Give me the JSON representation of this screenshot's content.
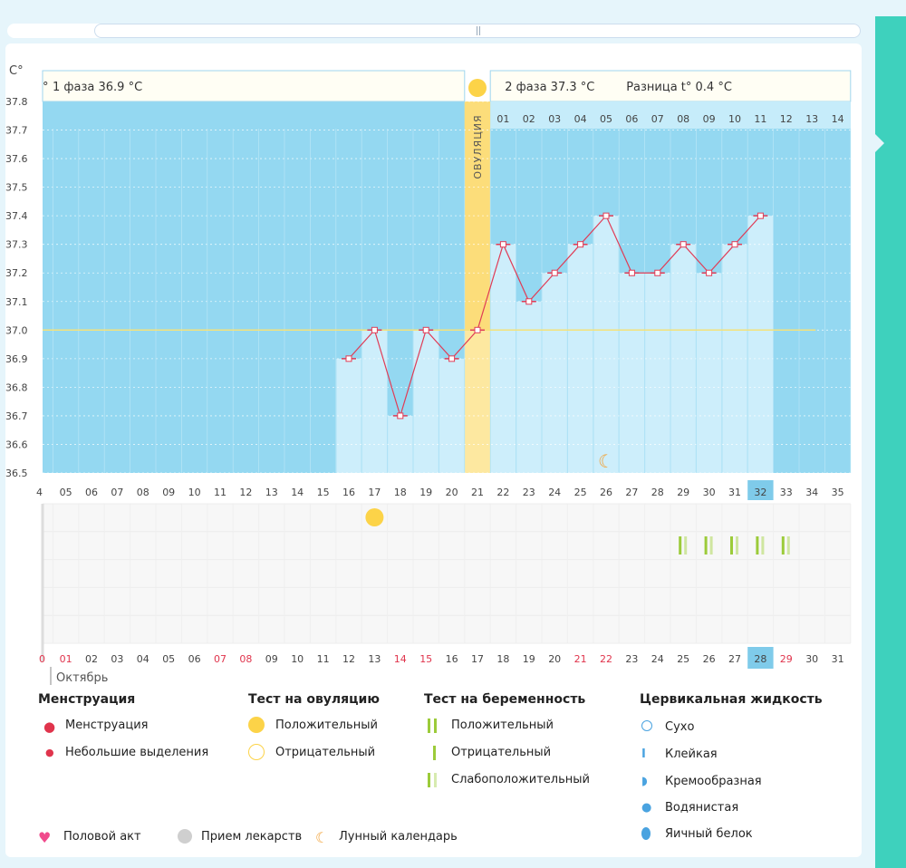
{
  "chart_data": {
    "type": "line",
    "ylabel": "C°",
    "ylim": [
      36.5,
      37.8
    ],
    "ystep": 0.1,
    "cycle_days": [
      4,
      5,
      6,
      7,
      8,
      9,
      10,
      11,
      12,
      13,
      14,
      15,
      16,
      17,
      18,
      19,
      20,
      21,
      22,
      23,
      24,
      25,
      26,
      27,
      28,
      29,
      30,
      31,
      32,
      33,
      34,
      35
    ],
    "cycle_day_labels": [
      "4",
      "05",
      "06",
      "07",
      "08",
      "09",
      "10",
      "11",
      "12",
      "13",
      "14",
      "15",
      "16",
      "17",
      "18",
      "19",
      "20",
      "21",
      "22",
      "23",
      "24",
      "25",
      "26",
      "27",
      "28",
      "29",
      "30",
      "31",
      "32",
      "33",
      "34",
      "35"
    ],
    "date_labels": [
      "0",
      "01",
      "02",
      "03",
      "04",
      "05",
      "06",
      "07",
      "08",
      "09",
      "10",
      "11",
      "12",
      "13",
      "14",
      "15",
      "16",
      "17",
      "18",
      "19",
      "20",
      "21",
      "22",
      "23",
      "24",
      "25",
      "26",
      "27",
      "28",
      "29",
      "30",
      "31"
    ],
    "red_dates": [
      "0",
      "01",
      "07",
      "08",
      "14",
      "15",
      "21",
      "22",
      "29"
    ],
    "highlight_day": "32",
    "highlight_date": "28",
    "month_label": "Октябрь",
    "temperatures": [
      {
        "day": 16,
        "t": 36.9
      },
      {
        "day": 17,
        "t": 37.0
      },
      {
        "day": 18,
        "t": 36.7
      },
      {
        "day": 19,
        "t": 37.0
      },
      {
        "day": 20,
        "t": 36.9
      },
      {
        "day": 21,
        "t": 37.0
      },
      {
        "day": 22,
        "t": 37.3
      },
      {
        "day": 23,
        "t": 37.1
      },
      {
        "day": 24,
        "t": 37.2
      },
      {
        "day": 25,
        "t": 37.3
      },
      {
        "day": 26,
        "t": 37.4
      },
      {
        "day": 27,
        "t": 37.2
      },
      {
        "day": 28,
        "t": 37.2
      },
      {
        "day": 29,
        "t": 37.3
      },
      {
        "day": 30,
        "t": 37.2
      },
      {
        "day": 31,
        "t": 37.3
      },
      {
        "day": 32,
        "t": 37.4
      }
    ],
    "ovulation_day": 21,
    "ovulation_label": "ОВУЛЯЦИЯ",
    "coverline": 37.0,
    "phase2_days": [
      "01",
      "02",
      "03",
      "04",
      "05",
      "06",
      "07",
      "08",
      "09",
      "10",
      "11",
      "12",
      "13",
      "14"
    ],
    "phase1_label": "1 фаза 36.9 °C",
    "phase1_prefix": "°",
    "phase2_label": "2 фаза 37.3 °C",
    "diff_label": "Разница t° 0.4 °C",
    "moon_day": 26,
    "ovulation_test_positive_day": 17,
    "pregnancy_test_weak_days": [
      29,
      30,
      31,
      32,
      33
    ]
  },
  "legend": {
    "menstruation": {
      "title": "Менструация",
      "items": [
        "Менструация",
        "Небольшие выделения"
      ]
    },
    "ovulation_test": {
      "title": "Тест на овуляцию",
      "items": [
        "Положительный",
        "Отрицательный"
      ]
    },
    "pregnancy_test": {
      "title": "Тест на беременность",
      "items": [
        "Положительный",
        "Отрицательный",
        "Слабоположительный"
      ]
    },
    "cervical": {
      "title": "Цервикальная жидкость",
      "items": [
        "Сухо",
        "Клейкая",
        "Кремообразная",
        "Водянистая",
        "Яичный белок"
      ]
    },
    "bottom": [
      "Половой акт",
      "Прием лекарств",
      "Лунный календарь"
    ]
  },
  "colors": {
    "sky": "#94d8f1",
    "bar": "#cdeefb",
    "line": "#e03c56",
    "ovulation": "#fde8a0",
    "accent": "#3ed1bd",
    "sun": "#fcd348",
    "moon": "#f2a33a",
    "green": "#9ccb3a",
    "red": "#e0344c"
  }
}
